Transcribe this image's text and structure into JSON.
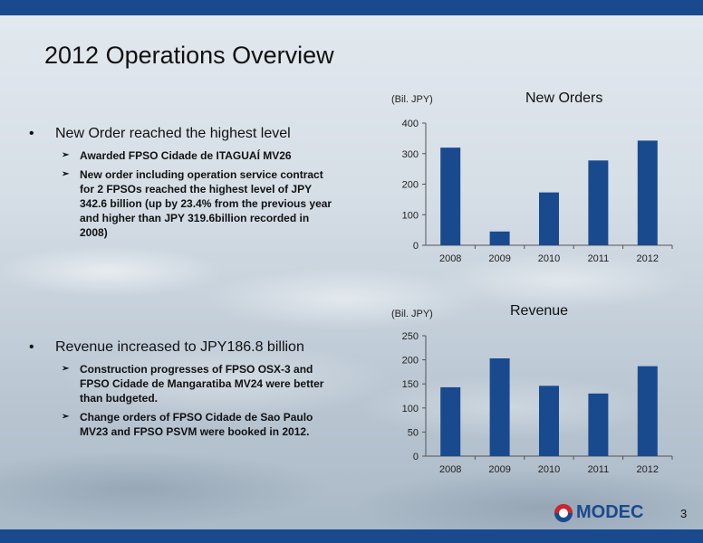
{
  "page": {
    "title": "2012 Operations Overview",
    "page_number": "3",
    "logo_text": "MODEC",
    "colors": {
      "bar": "#1a4a8e",
      "header_bar": "#1a4a8e"
    }
  },
  "section1": {
    "bullet_symbol": "•",
    "heading": "New Order reached the highest level",
    "items": [
      "Awarded FPSO Cidade de ITAGUAÍ MV26",
      "New order including operation service contract for 2 FPSOs reached the highest level of JPY 342.6 billion (up by 23.4% from the previous year and higher than JPY 319.6billion recorded in 2008)"
    ]
  },
  "section2": {
    "bullet_symbol": "•",
    "heading": "Revenue increased to JPY186.8 billion",
    "items": [
      "Construction progresses of FPSO OSX-3 and FPSO Cidade de Mangaratiba MV24 were better than budgeted.",
      "Change orders of FPSO Cidade de Sao Paulo MV23 and FPSO PSVM were booked in 2012."
    ]
  },
  "chart_data": [
    {
      "type": "bar",
      "title": "New Orders",
      "ylabel": "(Bil. JPY)",
      "categories": [
        "2008",
        "2009",
        "2010",
        "2011",
        "2012"
      ],
      "values": [
        319.6,
        45,
        173,
        277.6,
        342.6
      ],
      "ylim": [
        0,
        400
      ],
      "yticks": [
        0,
        100,
        200,
        300,
        400
      ],
      "grid": false,
      "legend": "none"
    },
    {
      "type": "bar",
      "title": "Revenue",
      "ylabel": "(Bil. JPY)",
      "categories": [
        "2008",
        "2009",
        "2010",
        "2011",
        "2012"
      ],
      "values": [
        143,
        203,
        146,
        130,
        186.8
      ],
      "ylim": [
        0,
        250
      ],
      "yticks": [
        0,
        50,
        100,
        150,
        200,
        250
      ],
      "grid": false,
      "legend": "none"
    }
  ]
}
